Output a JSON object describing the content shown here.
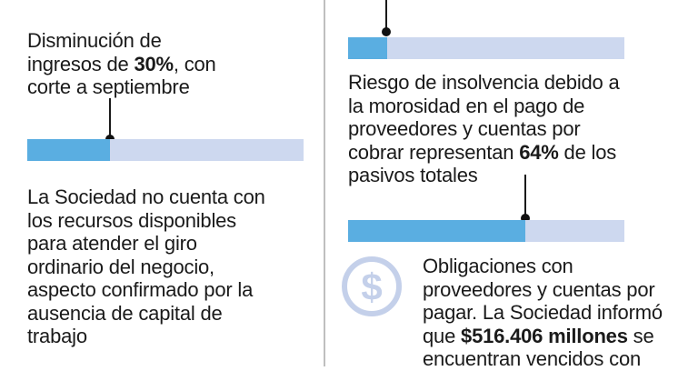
{
  "left": {
    "block1": {
      "pre": "Disminución de ingresos de ",
      "bold": "30%",
      "post": ", con corte a septiembre",
      "progress": 0.3
    },
    "block2": {
      "text": "La Sociedad no cuenta con los recursos disponibles para atender el giro ordinario del negocio, aspecto confirmado por la ausencia de capital de trabajo"
    }
  },
  "right": {
    "top_bar": {
      "progress": 0.14
    },
    "block1": {
      "pre": "Riesgo de insolvencia debido a la morosidad en el pago de proveedores y cuentas por cobrar representan ",
      "bold": "64%",
      "post": " de los pasivos totales",
      "progress": 0.64
    },
    "block2": {
      "pre": "Obligaciones con proveedores y cuentas por pagar. La Sociedad informó que ",
      "bold": "$516.406 millones",
      "post": " se encuentran vencidos con"
    },
    "icon": "dollar-circle-icon"
  },
  "colors": {
    "bar_fill": "#5aaee1",
    "bar_track": "#cdd8ef",
    "icon": "#c4d0ea"
  }
}
